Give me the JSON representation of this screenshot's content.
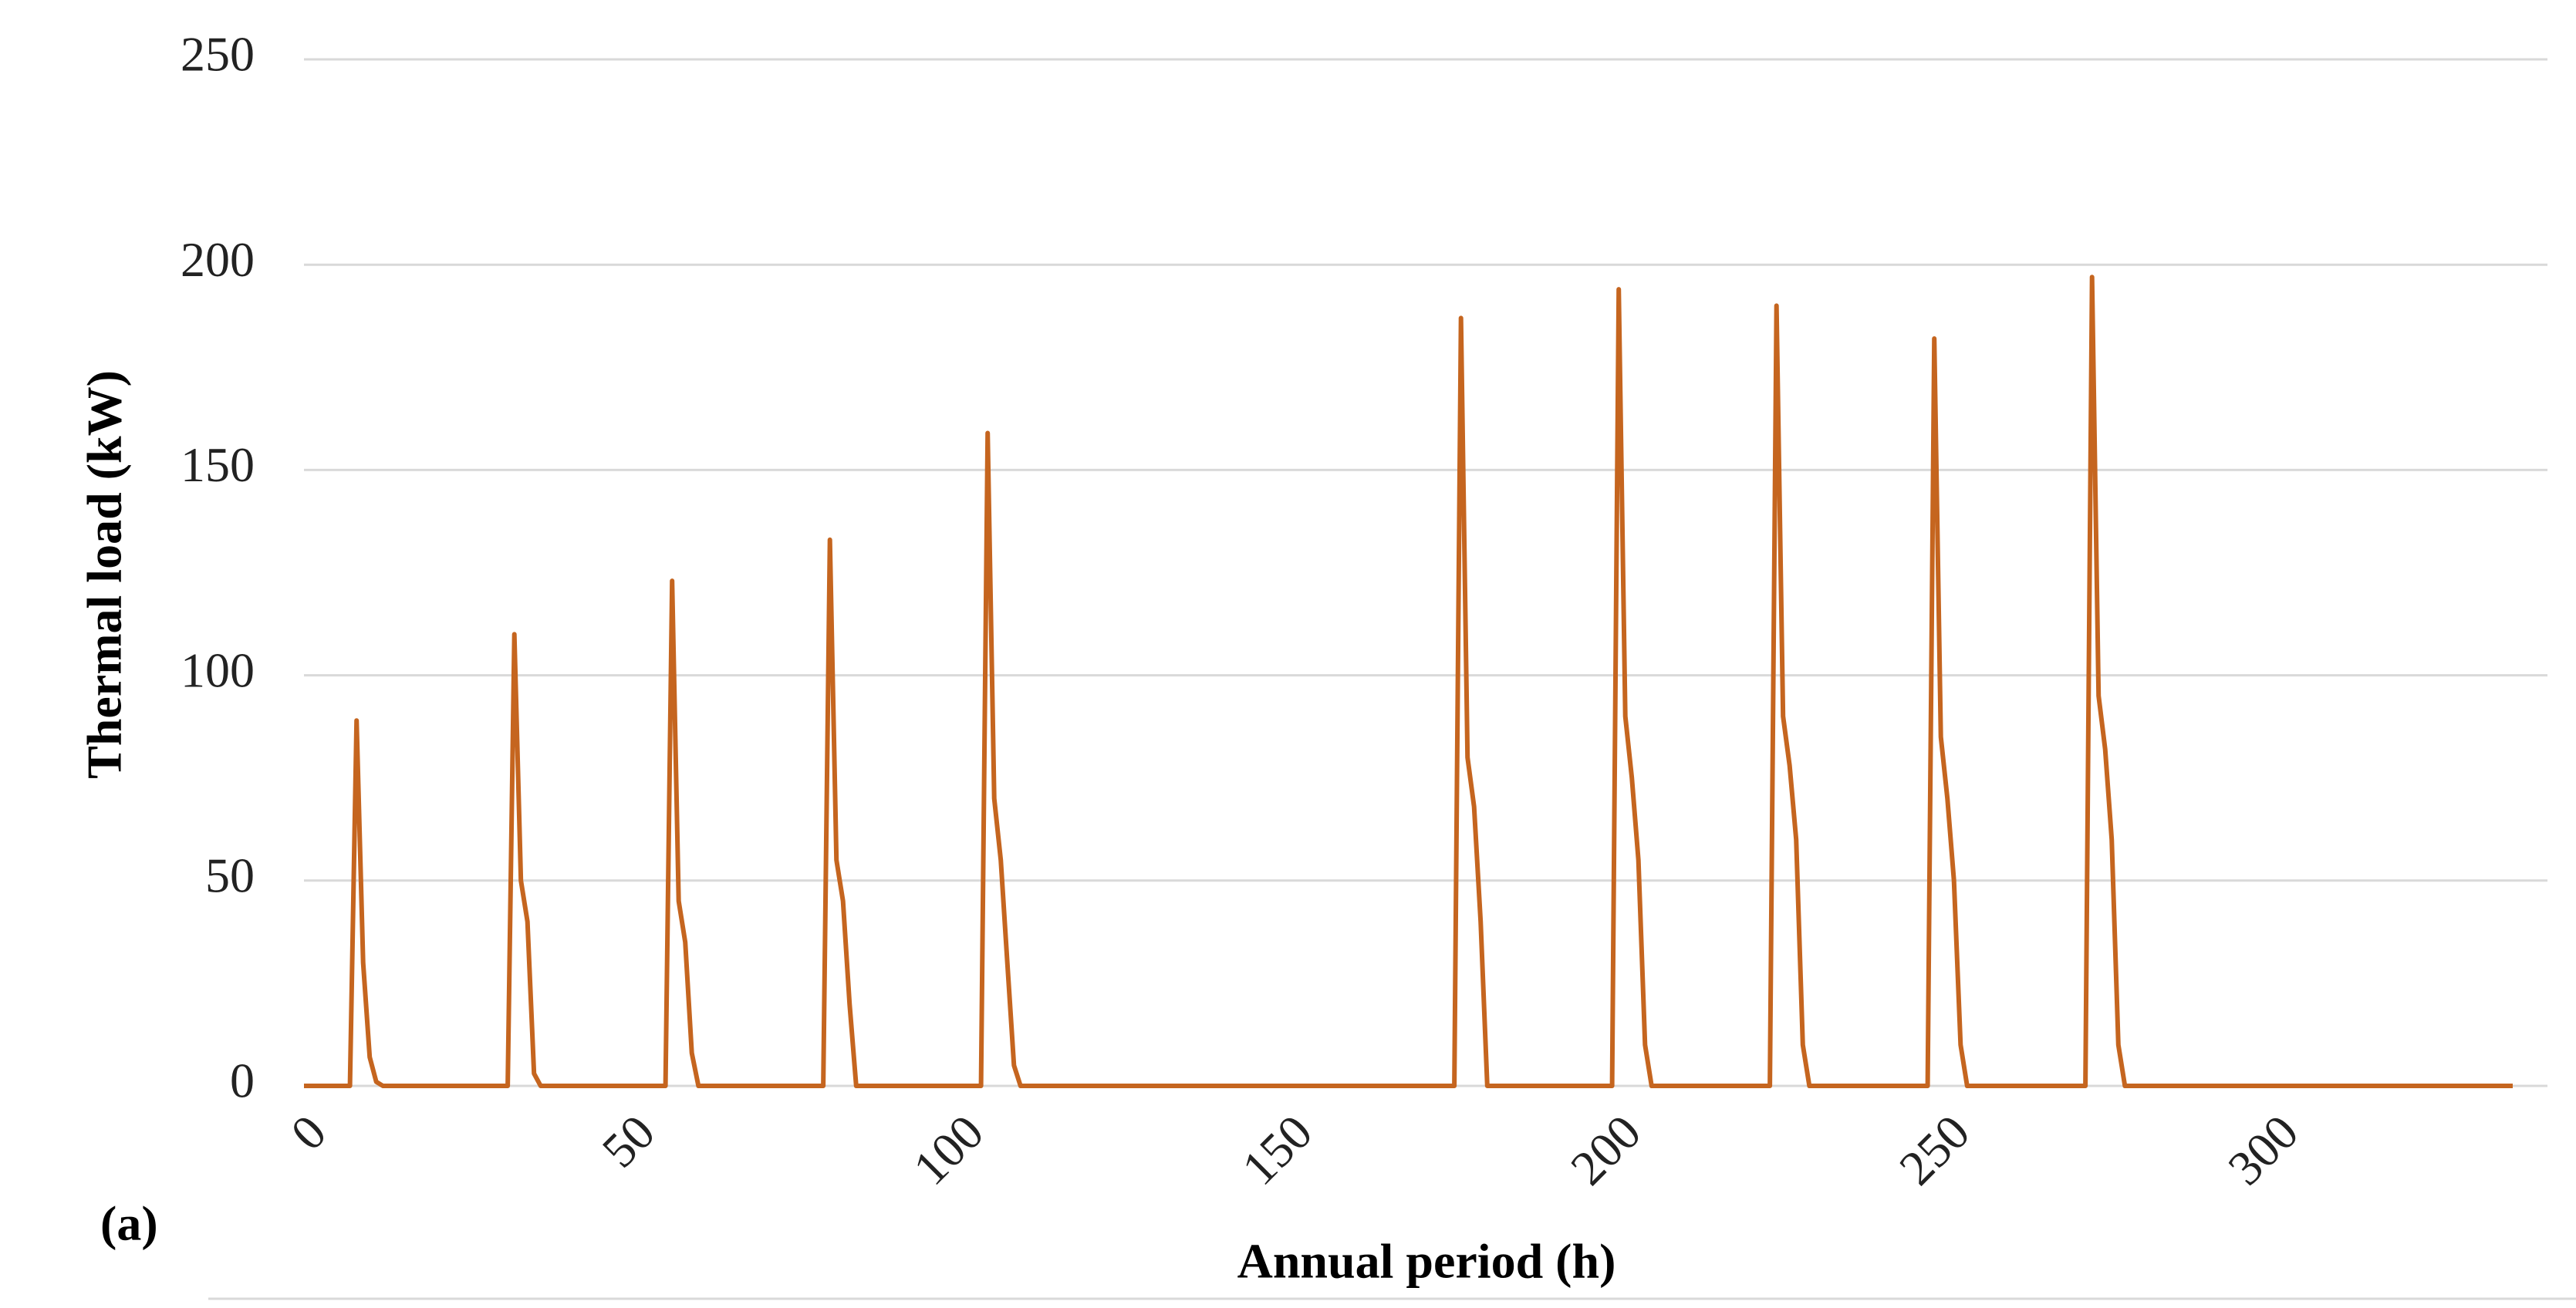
{
  "chart_data": {
    "type": "line",
    "x_label": "Annual period (h)",
    "y_label": "Thermal load (kW)",
    "annotation": "(a)",
    "color": "#c5651f",
    "grid": true,
    "xlim": [
      0,
      336
    ],
    "xticks": [
      0,
      50,
      100,
      150,
      200,
      250,
      300
    ],
    "ylim": [
      0,
      250
    ],
    "yticks": [
      0,
      50,
      100,
      150,
      200,
      250
    ],
    "x": [
      0,
      7,
      8,
      9,
      10,
      11,
      12,
      31,
      32,
      33,
      34,
      35,
      36,
      55,
      56,
      57,
      58,
      59,
      60,
      79,
      80,
      81,
      82,
      83,
      84,
      103,
      104,
      105,
      106,
      107,
      108,
      109,
      175,
      176,
      177,
      178,
      179,
      180,
      199,
      200,
      201,
      202,
      203,
      204,
      205,
      223,
      224,
      225,
      226,
      227,
      228,
      229,
      247,
      248,
      249,
      250,
      251,
      252,
      253,
      271,
      272,
      273,
      274,
      275,
      276,
      277,
      336
    ],
    "values": [
      0,
      0,
      89,
      30,
      7,
      1,
      0,
      0,
      110,
      50,
      40,
      3,
      0,
      0,
      123,
      45,
      35,
      8,
      0,
      0,
      133,
      55,
      45,
      20,
      0,
      0,
      159,
      70,
      55,
      30,
      5,
      0,
      0,
      187,
      80,
      68,
      40,
      0,
      0,
      194,
      90,
      75,
      55,
      10,
      0,
      0,
      190,
      90,
      78,
      60,
      10,
      0,
      0,
      182,
      85,
      70,
      50,
      10,
      0,
      0,
      197,
      95,
      82,
      60,
      10,
      0,
      0
    ]
  }
}
